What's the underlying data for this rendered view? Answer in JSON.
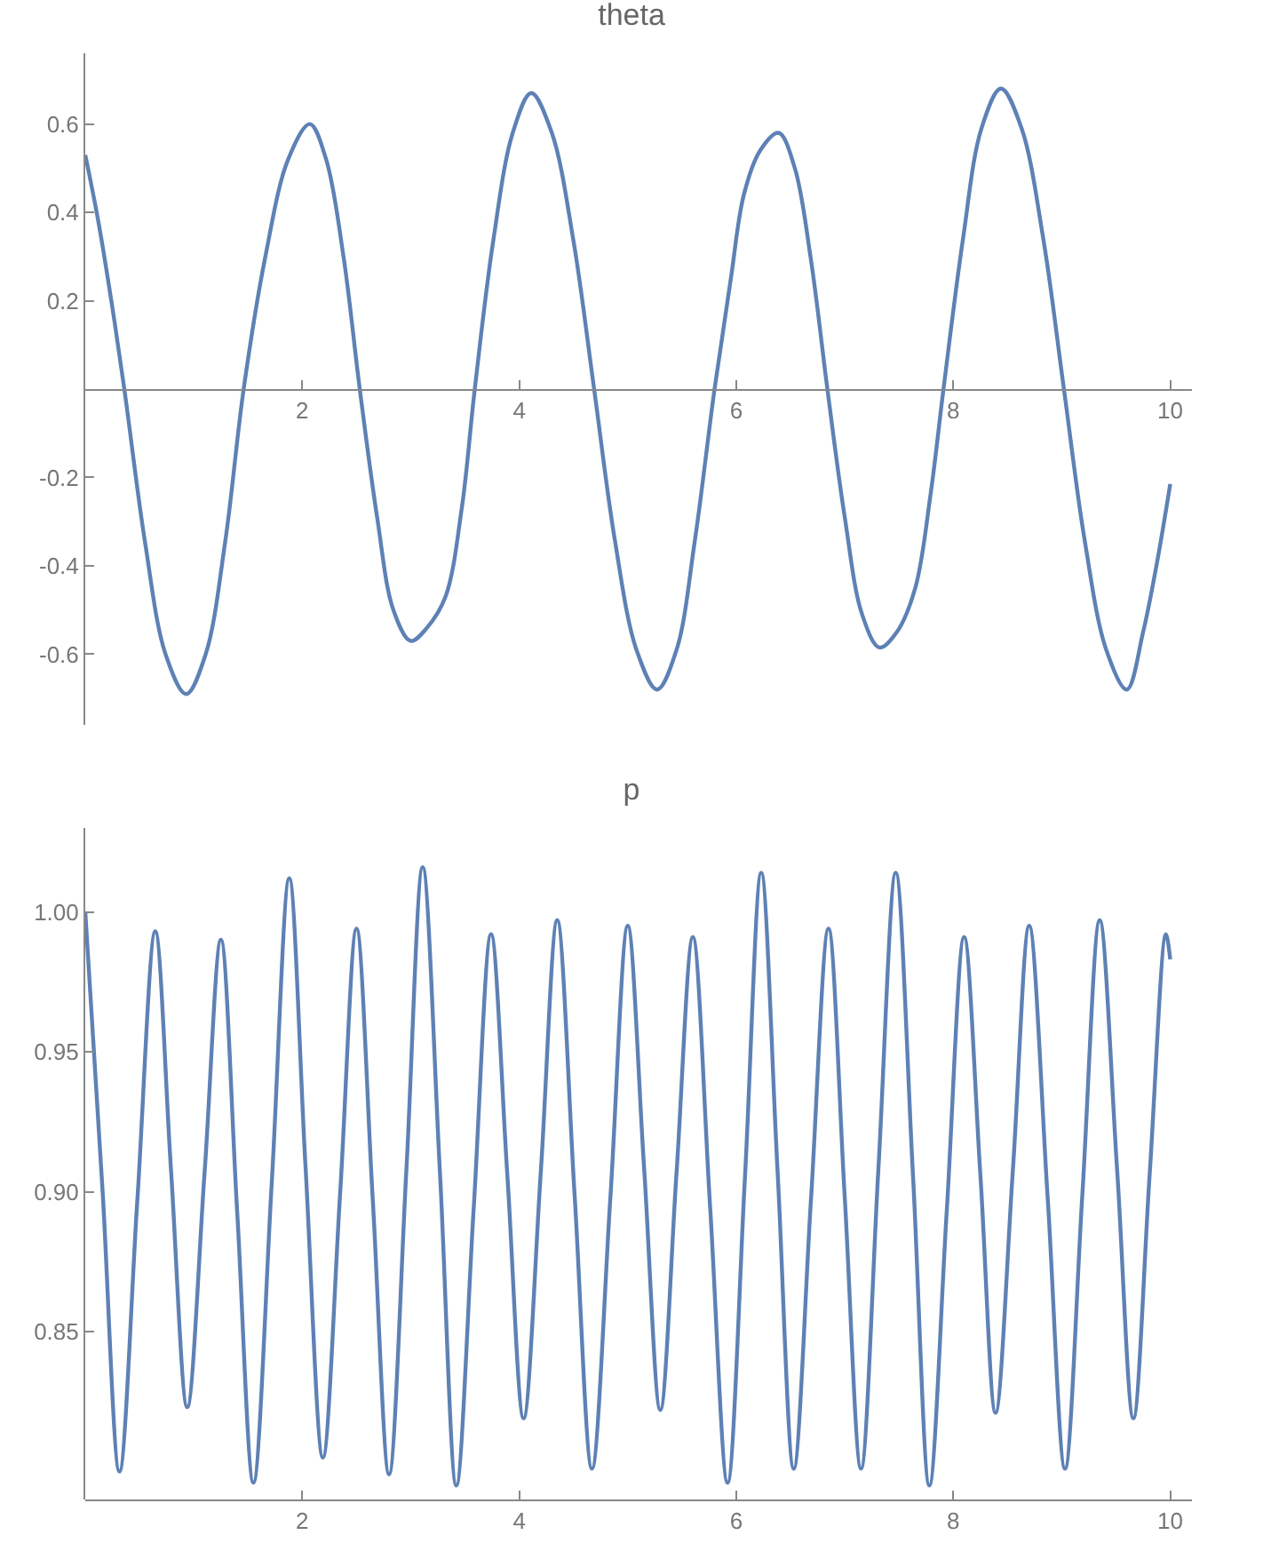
{
  "chart_data": [
    {
      "type": "line",
      "title": "theta",
      "xlim": [
        0,
        10.2
      ],
      "ylim": [
        -0.76,
        0.76
      ],
      "xticks": [
        2,
        4,
        6,
        8,
        10
      ],
      "yticks": [
        -0.6,
        -0.4,
        -0.2,
        0.2,
        0.4,
        0.6
      ],
      "x": [
        0,
        0.12,
        0.24,
        0.36,
        0.55,
        0.74,
        0.93,
        1.11,
        1.29,
        1.46,
        1.66,
        1.87,
        2.07,
        2.22,
        2.38,
        2.53,
        2.69,
        2.84,
        3.0,
        3.15,
        3.32,
        3.47,
        3.59,
        3.76,
        3.94,
        4.11,
        4.3,
        4.5,
        4.69,
        4.88,
        5.08,
        5.27,
        5.45,
        5.62,
        5.8,
        5.95,
        6.07,
        6.22,
        6.39,
        6.54,
        6.69,
        6.84,
        7.0,
        7.16,
        7.32,
        7.48,
        7.65,
        7.79,
        7.91,
        8.09,
        8.26,
        8.44,
        8.63,
        8.83,
        9.02,
        9.21,
        9.41,
        9.6,
        9.75,
        9.88,
        10
      ],
      "series": [
        {
          "color": "#5e81b5",
          "values": [
            0.53,
            0.38,
            0.2,
            0,
            -0.345,
            -0.6,
            -0.69,
            -0.6,
            -0.345,
            0,
            0.3,
            0.52,
            0.6,
            0.52,
            0.3,
            0,
            -0.29,
            -0.5,
            -0.57,
            -0.54,
            -0.47,
            -0.27,
            0,
            0.335,
            0.58,
            0.67,
            0.58,
            0.335,
            0,
            -0.34,
            -0.59,
            -0.68,
            -0.59,
            -0.34,
            0,
            0.25,
            0.44,
            0.54,
            0.58,
            0.5,
            0.29,
            0,
            -0.29,
            -0.51,
            -0.585,
            -0.55,
            -0.45,
            -0.24,
            0,
            0.34,
            0.59,
            0.68,
            0.59,
            0.34,
            0,
            -0.34,
            -0.59,
            -0.68,
            -0.55,
            -0.39,
            -0.215
          ]
        }
      ]
    },
    {
      "type": "line",
      "title": "p",
      "xlim": [
        0,
        10.2
      ],
      "ylim": [
        0.79,
        1.03
      ],
      "xticks": [
        2,
        4,
        6,
        8,
        10
      ],
      "yticks": [
        0.85,
        {
          "value": 0.9,
          "label": "0.90"
        },
        0.95,
        {
          "value": 1.0,
          "label": "1.00"
        }
      ],
      "x": [
        0,
        0.16,
        0.315,
        0.48,
        0.645,
        0.79,
        0.94,
        1.1,
        1.25,
        1.4,
        1.55,
        1.72,
        1.88,
        2.03,
        2.19,
        2.35,
        2.5,
        2.65,
        2.8,
        2.96,
        3.11,
        3.27,
        3.42,
        3.58,
        3.74,
        3.89,
        4.04,
        4.2,
        4.35,
        4.51,
        4.67,
        4.84,
        5.0,
        5.15,
        5.3,
        5.45,
        5.6,
        5.76,
        5.92,
        6.08,
        6.23,
        6.38,
        6.53,
        6.69,
        6.85,
        7.0,
        7.15,
        7.31,
        7.47,
        7.63,
        7.78,
        7.94,
        8.1,
        8.25,
        8.39,
        8.55,
        8.7,
        8.87,
        9.03,
        9.19,
        9.35,
        9.51,
        9.66,
        9.81,
        9.96,
        10
      ],
      "series": [
        {
          "color": "#5e81b5",
          "values": [
            1.0,
            0.9,
            0.8,
            0.897,
            0.993,
            0.908,
            0.823,
            0.907,
            0.99,
            0.893,
            0.796,
            0.904,
            1.012,
            0.909,
            0.805,
            0.9,
            0.994,
            0.897,
            0.799,
            0.908,
            1.016,
            0.906,
            0.795,
            0.894,
            0.992,
            0.906,
            0.819,
            0.908,
            0.997,
            0.899,
            0.801,
            0.898,
            0.995,
            0.909,
            0.822,
            0.907,
            0.991,
            0.894,
            0.796,
            0.905,
            1.014,
            0.908,
            0.801,
            0.898,
            0.994,
            0.898,
            0.801,
            0.908,
            1.014,
            0.905,
            0.795,
            0.893,
            0.991,
            0.906,
            0.821,
            0.908,
            0.995,
            0.898,
            0.801,
            0.899,
            0.997,
            0.908,
            0.819,
            0.906,
            0.992,
            0.983
          ]
        }
      ]
    }
  ]
}
